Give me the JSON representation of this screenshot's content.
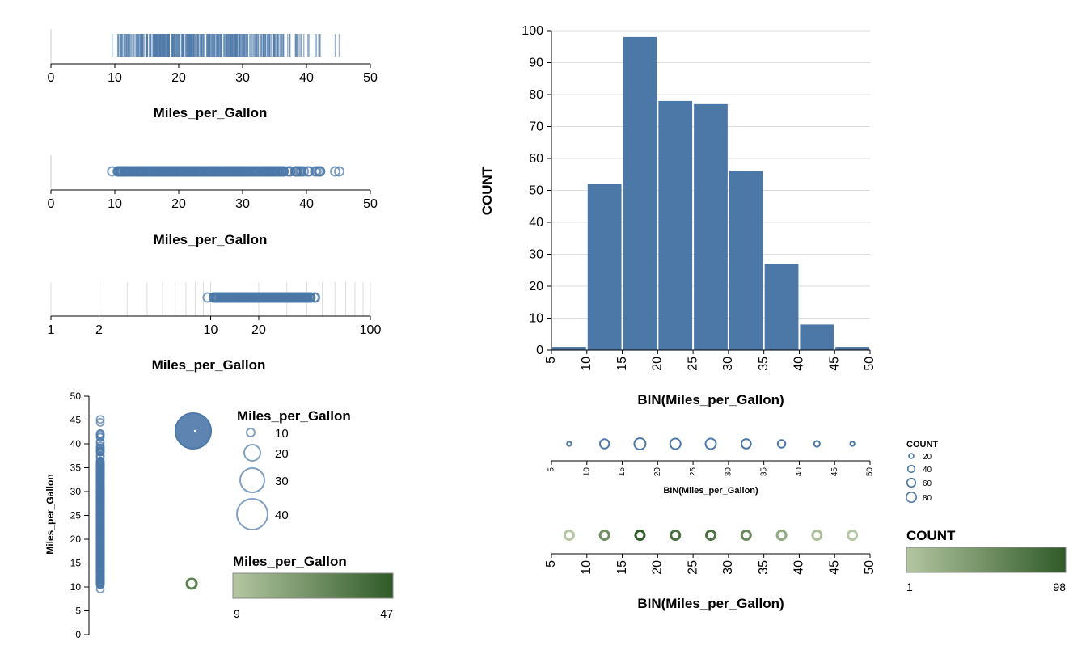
{
  "colors": {
    "primary": "#4c78a8",
    "green_low": "#b4c6a2",
    "green_high": "#2f5a27",
    "grid": "#dddddd"
  },
  "chart_data": [
    {
      "type": "strip",
      "mark": "tick",
      "field": "Miles_per_Gallon",
      "xlabel": "Miles_per_Gallon",
      "xlim": [
        0,
        50
      ],
      "x_ticks": [
        "0",
        "10",
        "20",
        "30",
        "40",
        "50"
      ]
    },
    {
      "type": "strip",
      "mark": "point",
      "field": "Miles_per_Gallon",
      "xlabel": "Miles_per_Gallon",
      "xlim": [
        0,
        50
      ],
      "x_ticks": [
        "0",
        "10",
        "20",
        "30",
        "40",
        "50"
      ]
    },
    {
      "type": "strip",
      "mark": "point",
      "scale": "log",
      "field": "Miles_per_Gallon",
      "xlabel": "Miles_per_Gallon",
      "xlim": [
        1,
        100
      ],
      "x_ticks": [
        "1",
        "2",
        "10",
        "20",
        "100"
      ]
    },
    {
      "type": "strip",
      "orient": "vertical",
      "mark": "point",
      "field": "Miles_per_Gallon",
      "ylabel": "Miles_per_Gallon",
      "ylim": [
        0,
        50
      ],
      "y_ticks": [
        "0",
        "5",
        "10",
        "15",
        "20",
        "25",
        "30",
        "35",
        "40",
        "45",
        "50"
      ]
    },
    {
      "type": "scatter",
      "encoding": "size",
      "legend": {
        "title": "Miles_per_Gallon",
        "values": [
          "10",
          "20",
          "30",
          "40"
        ]
      }
    },
    {
      "type": "scatter",
      "encoding": "color",
      "legend": {
        "title": "Miles_per_Gallon",
        "min": "9",
        "max": "47"
      }
    },
    {
      "type": "bar",
      "categories": [
        "5",
        "10",
        "15",
        "20",
        "25",
        "30",
        "35",
        "40",
        "45"
      ],
      "bin_edges": [
        5,
        10,
        15,
        20,
        25,
        30,
        35,
        40,
        45,
        50
      ],
      "x_ticks": [
        "5",
        "10",
        "15",
        "20",
        "25",
        "30",
        "35",
        "40",
        "45",
        "50"
      ],
      "values": [
        1,
        52,
        98,
        78,
        77,
        56,
        27,
        8,
        1
      ],
      "xlabel": "BIN(Miles_per_Gallon)",
      "ylabel": "COUNT",
      "ylim": [
        0,
        100
      ],
      "y_ticks": [
        "0",
        "10",
        "20",
        "30",
        "40",
        "50",
        "60",
        "70",
        "80",
        "90",
        "100"
      ],
      "grid": true
    },
    {
      "type": "scatter",
      "encoding": "size",
      "x": [
        7.5,
        12.5,
        17.5,
        22.5,
        27.5,
        32.5,
        37.5,
        42.5,
        47.5
      ],
      "values": [
        1,
        52,
        98,
        78,
        77,
        56,
        27,
        8,
        1
      ],
      "x_ticks": [
        "5",
        "10",
        "15",
        "20",
        "25",
        "30",
        "35",
        "40",
        "45",
        "50"
      ],
      "xlabel": "BIN(Miles_per_Gallon)",
      "legend": {
        "title": "COUNT",
        "values": [
          "20",
          "40",
          "60",
          "80"
        ]
      }
    },
    {
      "type": "scatter",
      "encoding": "color",
      "x": [
        7.5,
        12.5,
        17.5,
        22.5,
        27.5,
        32.5,
        37.5,
        42.5,
        47.5
      ],
      "values": [
        1,
        52,
        98,
        78,
        77,
        56,
        27,
        8,
        1
      ],
      "x_ticks": [
        "5",
        "10",
        "15",
        "20",
        "25",
        "30",
        "35",
        "40",
        "45",
        "50"
      ],
      "xlabel": "BIN(Miles_per_Gallon)",
      "legend": {
        "title": "COUNT",
        "min": "1",
        "max": "98"
      }
    }
  ]
}
